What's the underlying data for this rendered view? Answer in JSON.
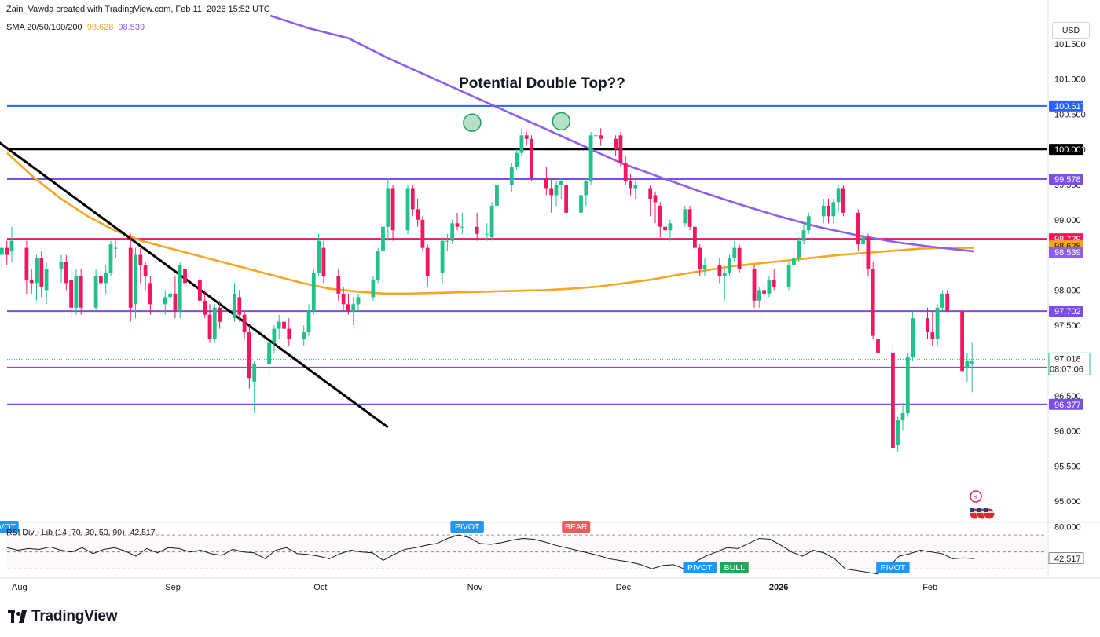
{
  "header": {
    "credit": "Zain_Vawda created with TradingView.com, Feb 11, 2026 15:52 UTC",
    "sma_label": "SMA 20/50/100/200",
    "sma_values": [
      "98.628",
      "98.539"
    ]
  },
  "currency": "USD",
  "rsi_label": "RSI Div - Lib (14, 70, 30, 50, 90)",
  "rsi_value": "42.517",
  "brand": "TradingView",
  "colors": {
    "up": "#22c18a",
    "down": "#f5175e",
    "sma_orange": "#f5a623",
    "sma_purple": "#8e5cf0",
    "level_purple": "#7b4fe6",
    "level_blue": "#2962ff",
    "level_red": "#f5175e",
    "level_black": "#000000",
    "trendline": "#000000",
    "pivot_blue": "#2196f3",
    "bull_green": "#26a65b",
    "bear_red": "#f05a5a"
  },
  "chart_data": {
    "type": "candlestick",
    "title": "Potential Double Top??",
    "y_axis": {
      "ylim": [
        94.7,
        101.9
      ],
      "ticks": [
        "101.500",
        "101.000",
        "100.500",
        "100.000",
        "99.500",
        "99.000",
        "98.500",
        "98.000",
        "97.500",
        "97.000",
        "96.500",
        "96.000",
        "95.500",
        "95.000"
      ]
    },
    "x_axis": {
      "labels": [
        {
          "text": "Aug",
          "date": "2025-08-01"
        },
        {
          "text": "Sep",
          "date": "2025-09-01"
        },
        {
          "text": "Oct",
          "date": "2025-10-01"
        },
        {
          "text": "Nov",
          "date": "2025-11-01"
        },
        {
          "text": "Dec",
          "date": "2025-12-01"
        },
        {
          "text": "2026",
          "date": "2026-01-01",
          "bold": true
        },
        {
          "text": "Feb",
          "date": "2026-02-01"
        }
      ]
    },
    "candles": [
      [
        99.9,
        100.2,
        99.85,
        100.15
      ],
      [
        100.15,
        100.3,
        98.4,
        98.5
      ],
      [
        98.5,
        98.7,
        98.3,
        98.6
      ],
      [
        98.6,
        98.7,
        98.35,
        98.5
      ],
      [
        98.55,
        98.9,
        98.4,
        98.7
      ],
      [
        98.6,
        98.7,
        97.95,
        98.15
      ],
      [
        98.15,
        98.3,
        97.95,
        98.1
      ],
      [
        98.1,
        98.5,
        97.85,
        98.45
      ],
      [
        98.45,
        98.55,
        97.9,
        98.05
      ],
      [
        98.0,
        98.4,
        97.8,
        98.3
      ],
      [
        98.3,
        98.5,
        98.1,
        98.4
      ],
      [
        98.4,
        98.5,
        98.0,
        98.1
      ],
      [
        98.15,
        98.3,
        97.6,
        97.75
      ],
      [
        97.75,
        98.3,
        97.65,
        98.2
      ],
      [
        98.2,
        98.3,
        97.65,
        97.75
      ],
      [
        97.75,
        98.3,
        97.7,
        98.2
      ],
      [
        98.2,
        98.3,
        97.9,
        98.1
      ],
      [
        98.1,
        98.35,
        97.95,
        98.25
      ],
      [
        98.25,
        98.7,
        98.2,
        98.65
      ],
      [
        98.6,
        98.7,
        98.45,
        98.6
      ],
      [
        98.6,
        98.8,
        97.55,
        97.75
      ],
      [
        97.8,
        98.6,
        97.6,
        98.5
      ],
      [
        98.5,
        98.6,
        98.1,
        98.35
      ],
      [
        98.35,
        98.4,
        98.0,
        98.2
      ],
      [
        98.1,
        98.2,
        97.65,
        97.8
      ],
      [
        97.8,
        98.0,
        97.65,
        97.9
      ],
      [
        97.9,
        98.1,
        97.75,
        97.95
      ],
      [
        97.95,
        98.2,
        97.6,
        97.7
      ],
      [
        97.7,
        98.4,
        97.6,
        98.35
      ],
      [
        98.3,
        98.4,
        98.05,
        98.1
      ],
      [
        98.15,
        98.2,
        97.75,
        97.85
      ],
      [
        97.85,
        98.0,
        97.6,
        97.65
      ],
      [
        97.65,
        97.8,
        97.25,
        97.3
      ],
      [
        97.3,
        97.8,
        97.25,
        97.75
      ],
      [
        97.75,
        97.85,
        97.45,
        97.55
      ],
      [
        97.6,
        98.1,
        97.55,
        97.95
      ],
      [
        97.9,
        98.0,
        97.55,
        97.65
      ],
      [
        97.65,
        97.7,
        97.3,
        97.4
      ],
      [
        97.4,
        97.5,
        96.6,
        96.75
      ],
      [
        96.7,
        97.0,
        96.25,
        96.95
      ],
      [
        96.95,
        97.4,
        96.8,
        97.25
      ],
      [
        97.25,
        97.5,
        97.1,
        97.45
      ],
      [
        97.45,
        97.65,
        97.3,
        97.55
      ],
      [
        97.55,
        97.7,
        97.35,
        97.45
      ],
      [
        97.45,
        97.6,
        97.2,
        97.3
      ],
      [
        97.3,
        97.5,
        97.2,
        97.4
      ],
      [
        97.4,
        97.8,
        97.35,
        97.7
      ],
      [
        97.7,
        98.3,
        97.65,
        98.25
      ],
      [
        98.25,
        98.8,
        98.2,
        98.7
      ],
      [
        98.6,
        98.7,
        98.1,
        98.2
      ],
      [
        98.2,
        98.3,
        97.85,
        97.95
      ],
      [
        97.95,
        98.05,
        97.7,
        97.8
      ],
      [
        97.8,
        97.95,
        97.65,
        97.7
      ],
      [
        97.7,
        97.9,
        97.5,
        97.8
      ],
      [
        97.8,
        97.95,
        97.7,
        97.9
      ],
      [
        97.9,
        98.2,
        97.85,
        98.15
      ],
      [
        98.15,
        98.6,
        98.1,
        98.55
      ],
      [
        98.55,
        98.95,
        98.5,
        98.9
      ],
      [
        98.9,
        99.6,
        98.7,
        99.45
      ],
      [
        99.45,
        99.5,
        98.7,
        98.85
      ],
      [
        98.85,
        99.5,
        98.8,
        99.45
      ],
      [
        99.45,
        99.5,
        99.05,
        99.15
      ],
      [
        99.15,
        99.3,
        98.9,
        99.0
      ],
      [
        99.0,
        99.05,
        98.55,
        98.6
      ],
      [
        98.6,
        98.65,
        98.05,
        98.2
      ],
      [
        98.25,
        98.75,
        98.1,
        98.7
      ],
      [
        98.7,
        98.8,
        98.55,
        98.7
      ],
      [
        98.7,
        99.0,
        98.65,
        98.95
      ],
      [
        98.95,
        99.1,
        98.85,
        98.9
      ],
      [
        98.9,
        99.1,
        98.8,
        98.9
      ],
      [
        98.9,
        99.1,
        98.7,
        98.8
      ],
      [
        98.8,
        98.95,
        98.7,
        98.8
      ],
      [
        98.75,
        99.25,
        98.7,
        99.2
      ],
      [
        99.2,
        99.55,
        99.15,
        99.5
      ],
      [
        99.5,
        99.8,
        99.4,
        99.75
      ],
      [
        99.75,
        100.0,
        99.7,
        99.95
      ],
      [
        99.95,
        100.3,
        99.9,
        100.2
      ],
      [
        100.2,
        100.25,
        100.05,
        100.15
      ],
      [
        100.15,
        100.2,
        99.55,
        99.6
      ],
      [
        99.6,
        99.75,
        99.35,
        99.45
      ],
      [
        99.45,
        99.6,
        99.1,
        99.35
      ],
      [
        99.35,
        99.55,
        99.2,
        99.5
      ],
      [
        99.5,
        99.6,
        99.3,
        99.55
      ],
      [
        99.5,
        99.55,
        99.0,
        99.1
      ],
      [
        99.1,
        99.4,
        99.05,
        99.35
      ],
      [
        99.35,
        99.6,
        99.2,
        99.55
      ],
      [
        99.55,
        100.25,
        99.5,
        100.2
      ],
      [
        100.2,
        100.3,
        100.1,
        100.2
      ],
      [
        100.2,
        100.3,
        100.05,
        100.15
      ],
      [
        100.15,
        100.2,
        99.9,
        100.0
      ],
      [
        100.2,
        100.25,
        99.75,
        99.8
      ],
      [
        99.8,
        99.9,
        99.5,
        99.55
      ],
      [
        99.55,
        99.65,
        99.35,
        99.45
      ],
      [
        99.45,
        99.6,
        99.3,
        99.5
      ],
      [
        99.45,
        99.5,
        99.05,
        99.3
      ],
      [
        99.35,
        99.4,
        98.95,
        99.25
      ],
      [
        99.2,
        99.25,
        98.75,
        98.9
      ],
      [
        98.9,
        99.05,
        98.8,
        98.85
      ],
      [
        98.85,
        99.0,
        98.7,
        98.95
      ],
      [
        98.95,
        99.2,
        98.9,
        99.15
      ],
      [
        99.15,
        99.2,
        98.85,
        98.9
      ],
      [
        98.9,
        99.0,
        98.55,
        98.6
      ],
      [
        98.6,
        98.65,
        98.2,
        98.3
      ],
      [
        98.3,
        98.45,
        98.2,
        98.35
      ],
      [
        98.35,
        98.45,
        98.1,
        98.2
      ],
      [
        98.2,
        98.3,
        97.85,
        98.25
      ],
      [
        98.25,
        98.5,
        98.2,
        98.45
      ],
      [
        98.45,
        98.7,
        98.4,
        98.6
      ],
      [
        98.6,
        98.65,
        98.25,
        98.3
      ],
      [
        98.3,
        98.35,
        97.75,
        97.85
      ],
      [
        97.85,
        98.05,
        97.75,
        98.0
      ],
      [
        98.0,
        98.1,
        97.8,
        97.95
      ],
      [
        97.95,
        98.2,
        97.9,
        98.15
      ],
      [
        98.15,
        98.3,
        98.0,
        98.05
      ],
      [
        98.05,
        98.4,
        98.0,
        98.35
      ],
      [
        98.35,
        98.5,
        98.2,
        98.45
      ],
      [
        98.45,
        98.75,
        98.4,
        98.7
      ],
      [
        98.7,
        98.95,
        98.65,
        98.85
      ],
      [
        98.85,
        99.1,
        98.8,
        99.05
      ],
      [
        99.05,
        99.3,
        98.95,
        99.2
      ],
      [
        99.2,
        99.3,
        98.95,
        99.05
      ],
      [
        99.05,
        99.3,
        98.95,
        99.25
      ],
      [
        99.25,
        99.5,
        99.1,
        99.45
      ],
      [
        99.45,
        99.5,
        99.05,
        99.1
      ],
      [
        99.1,
        99.15,
        98.55,
        98.65
      ],
      [
        98.65,
        98.8,
        98.25,
        98.75
      ],
      [
        98.75,
        98.8,
        98.2,
        98.3
      ],
      [
        98.3,
        98.4,
        97.3,
        97.35
      ],
      [
        97.3,
        97.35,
        96.85,
        97.1
      ],
      [
        97.1,
        97.2,
        95.75,
        95.75
      ],
      [
        95.8,
        96.2,
        95.7,
        96.15
      ],
      [
        96.15,
        96.4,
        96.0,
        96.25
      ],
      [
        96.25,
        97.1,
        96.2,
        97.05
      ],
      [
        97.05,
        97.7,
        97.0,
        97.6
      ],
      [
        97.6,
        97.75,
        97.3,
        97.4
      ],
      [
        97.4,
        97.7,
        97.2,
        97.3
      ],
      [
        97.3,
        97.8,
        97.2,
        97.75
      ],
      [
        97.75,
        98.0,
        97.7,
        97.95
      ],
      [
        97.95,
        98.0,
        97.7,
        97.7
      ],
      [
        97.7,
        97.75,
        96.8,
        96.85
      ],
      [
        96.9,
        97.1,
        96.7,
        97.0
      ],
      [
        96.95,
        97.25,
        96.55,
        97.0
      ]
    ],
    "candle_dates": {
      "first": "2025-07-28",
      "last": "2026-02-11",
      "session_days": "Mon-Fri"
    },
    "sma_series": [
      {
        "name": "SMA 20/50/100/200",
        "value_label": "98.628",
        "color": "#f5a623",
        "values": [
          99.95,
          99.6,
          99.3,
          99.05,
          98.85,
          98.7,
          98.6,
          98.5,
          98.4,
          98.3,
          98.2,
          98.1,
          98.02,
          97.98,
          97.95,
          97.95,
          97.96,
          97.97,
          97.98,
          97.99,
          98.0,
          98.02,
          98.05,
          98.1,
          98.15,
          98.22,
          98.28,
          98.34,
          98.38,
          98.42,
          98.46,
          98.5,
          98.53,
          98.56,
          98.59,
          98.6,
          98.6
        ]
      },
      {
        "name": "SMA 20/50/100/200",
        "value_label": "98.539",
        "color": "#8e5cf0",
        "values": [
          101.9,
          101.72,
          101.58,
          101.3,
          101.05,
          100.8,
          100.55,
          100.3,
          100.05,
          99.8,
          99.6,
          99.4,
          99.22,
          99.05,
          98.9,
          98.78,
          98.68,
          98.61,
          98.55
        ]
      }
    ],
    "horizontal_levels": [
      {
        "value": 100.617,
        "label": "100.617",
        "color": "#2962ff",
        "label_bg": "#2962ff",
        "label_fg": "#ffffff"
      },
      {
        "value": 100.001,
        "label": "100.001",
        "color": "#000000",
        "label_bg": "#000000",
        "label_fg": "#ffffff"
      },
      {
        "value": 99.578,
        "label": "99.578",
        "color": "#7b4fe6",
        "label_bg": "#7b4fe6",
        "label_fg": "#ffffff"
      },
      {
        "value": 98.729,
        "label": "98.729",
        "color": "#f5175e",
        "label_bg": "#f5175e",
        "label_fg": "#ffffff"
      },
      {
        "value": 98.628,
        "label": "98.628",
        "color": null,
        "label_bg": "#f5a623",
        "label_fg": "#131722"
      },
      {
        "value": 98.539,
        "label": "98.539",
        "color": null,
        "label_bg": "#8e5cf0",
        "label_fg": "#ffffff"
      },
      {
        "value": 97.702,
        "label": "97.702",
        "color": "#7b4fe6",
        "label_bg": "#7b4fe6",
        "label_fg": "#ffffff"
      },
      {
        "value": 96.901,
        "label": "96.901",
        "color": "#7b4fe6",
        "label_bg": "#7b4fe6",
        "label_fg": "#ffffff"
      },
      {
        "value": 96.377,
        "label": "96.377",
        "color": "#7b4fe6",
        "label_bg": "#7b4fe6",
        "label_fg": "#ffffff"
      }
    ],
    "current_price": {
      "value": 97.018,
      "label": "97.018",
      "countdown": "08:07:06",
      "color": "#22c18a"
    },
    "trendline": {
      "from": {
        "date": "2025-07-25",
        "value": 100.33
      },
      "to": {
        "date": "2025-10-16",
        "value": 96.05
      }
    },
    "annotation_circles": [
      {
        "date": "2025-11-02",
        "value": 100.38
      },
      {
        "date": "2025-11-20",
        "value": 100.4
      }
    ],
    "rsi": {
      "ylim": [
        20,
        85
      ],
      "levels": [
        70,
        50,
        30
      ],
      "values": [
        55,
        52,
        54,
        53,
        56,
        52,
        50,
        55,
        48,
        53,
        55,
        51,
        45,
        54,
        49,
        55,
        54,
        50,
        52,
        48,
        46,
        53,
        50,
        49,
        42,
        52,
        55,
        48,
        47,
        45,
        42,
        48,
        52,
        50,
        49,
        40,
        47,
        53,
        55,
        58,
        60,
        66,
        70,
        67,
        60,
        59,
        61,
        64,
        66,
        65,
        62,
        58,
        55,
        52,
        49,
        46,
        42,
        40,
        38,
        35,
        30,
        34,
        35,
        30,
        38,
        45,
        50,
        55,
        54,
        60,
        66,
        65,
        58,
        50,
        45,
        52,
        49,
        42,
        30,
        28,
        26,
        24,
        32,
        45,
        48,
        52,
        50,
        48,
        42,
        43,
        42
      ],
      "markers": [
        {
          "text": "PIVOT",
          "type": "pivot",
          "date": "2025-11-01",
          "placement": "above"
        },
        {
          "text": "BEAR",
          "type": "bear",
          "date": "2025-11-23",
          "placement": "above"
        },
        {
          "text": "PIVOT",
          "type": "pivot",
          "date": "2025-12-18",
          "placement": "below"
        },
        {
          "text": "BULL",
          "type": "bull",
          "date": "2025-12-25",
          "placement": "below"
        },
        {
          "text": "PIVOT",
          "type": "pivot",
          "date": "2026-01-26",
          "placement": "below"
        },
        {
          "text": "VOT",
          "type": "pivot",
          "date": "2025-07-28",
          "placement": "above"
        }
      ]
    }
  }
}
